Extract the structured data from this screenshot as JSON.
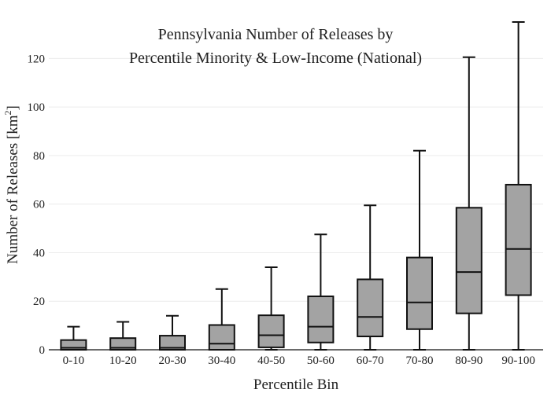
{
  "chart_data": {
    "type": "box",
    "title_lines": [
      "Pennsylvania Number of Releases by",
      "Percentile Minority & Low-Income (National)"
    ],
    "xlabel": "Percentile Bin",
    "ylabel_main": "Number of Releases  [km",
    "ylabel_sup": "2",
    "ylabel_end": "]",
    "ylim": [
      0,
      135
    ],
    "yticks": [
      0,
      20,
      40,
      60,
      80,
      100,
      120
    ],
    "grid": true,
    "box_color": "#a3a3a3",
    "categories": [
      "0-10",
      "10-20",
      "20-30",
      "30-40",
      "40-50",
      "50-60",
      "60-70",
      "70-80",
      "80-90",
      "90-100"
    ],
    "boxes": [
      {
        "min": 0,
        "q1": 0,
        "median": 0.8,
        "q3": 4,
        "max": 9.5
      },
      {
        "min": 0,
        "q1": 0,
        "median": 0.8,
        "q3": 4.8,
        "max": 11.5
      },
      {
        "min": 0,
        "q1": 0,
        "median": 0.8,
        "q3": 5.8,
        "max": 14
      },
      {
        "min": 0,
        "q1": 0,
        "median": 2.5,
        "q3": 10.2,
        "max": 25
      },
      {
        "min": 0,
        "q1": 1,
        "median": 6,
        "q3": 14.2,
        "max": 34
      },
      {
        "min": 0,
        "q1": 3,
        "median": 9.5,
        "q3": 22,
        "max": 47.5
      },
      {
        "min": 0,
        "q1": 5.5,
        "median": 13.5,
        "q3": 29,
        "max": 59.5
      },
      {
        "min": 0,
        "q1": 8.5,
        "median": 19.5,
        "q3": 38,
        "max": 82
      },
      {
        "min": 0,
        "q1": 15,
        "median": 32,
        "q3": 58.5,
        "max": 120.5
      },
      {
        "min": 0,
        "q1": 22.5,
        "median": 41.5,
        "q3": 68,
        "max": 135
      }
    ]
  }
}
